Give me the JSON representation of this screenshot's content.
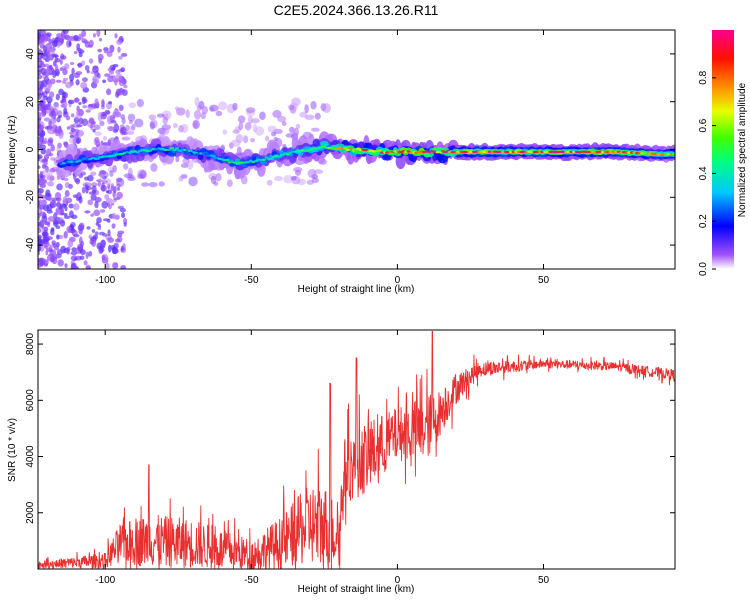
{
  "title": "C2E5.2024.366.13.26.R11",
  "chart_data": [
    {
      "type": "heatmap",
      "xlabel": "Height of straight line (km)",
      "ylabel": "Frequency (Hz)",
      "xlim": [
        -123,
        95
      ],
      "ylim": [
        -50,
        50
      ],
      "xticks": [
        -100,
        -50,
        0,
        50
      ],
      "yticks": [
        -40,
        -20,
        0,
        20,
        40
      ],
      "colorbar": {
        "label": "Normalized spectral amplitude",
        "range": [
          0,
          1
        ],
        "ticks": [
          0.0,
          0.2,
          0.4,
          0.6,
          0.8
        ],
        "colors": [
          "#ffffff",
          "#8000ff",
          "#0000ff",
          "#00ffff",
          "#00ff00",
          "#ffff00",
          "#ff8000",
          "#ff0000",
          "#ff0080"
        ]
      },
      "ridge": [
        {
          "x": -115,
          "y": -6,
          "amp": 0.3
        },
        {
          "x": -105,
          "y": -4,
          "amp": 0.35
        },
        {
          "x": -95,
          "y": -2,
          "amp": 0.4
        },
        {
          "x": -85,
          "y": 0,
          "amp": 0.4
        },
        {
          "x": -75,
          "y": 0,
          "amp": 0.4
        },
        {
          "x": -65,
          "y": -2,
          "amp": 0.35
        },
        {
          "x": -55,
          "y": -6,
          "amp": 0.45
        },
        {
          "x": -45,
          "y": -4,
          "amp": 0.45
        },
        {
          "x": -35,
          "y": -1,
          "amp": 0.5
        },
        {
          "x": -25,
          "y": 1,
          "amp": 0.55
        },
        {
          "x": -15,
          "y": 0,
          "amp": 0.75
        },
        {
          "x": -5,
          "y": -1,
          "amp": 0.8
        },
        {
          "x": 5,
          "y": -1,
          "amp": 0.85
        },
        {
          "x": 25,
          "y": -1,
          "amp": 0.9
        },
        {
          "x": 50,
          "y": -1,
          "amp": 0.9
        },
        {
          "x": 75,
          "y": -1,
          "amp": 0.9
        },
        {
          "x": 90,
          "y": -2,
          "amp": 0.7
        }
      ]
    },
    {
      "type": "line",
      "xlabel": "Height of straight line (km)",
      "ylabel": "SNR (10 * v/v)",
      "xlim": [
        -123,
        95
      ],
      "ylim": [
        0,
        8500
      ],
      "xticks": [
        -100,
        -50,
        0,
        50
      ],
      "yticks": [
        2000,
        4000,
        6000,
        8000
      ],
      "color": "#e83030",
      "envelope": [
        {
          "x": -123,
          "mean": 150,
          "amp": 150
        },
        {
          "x": -100,
          "mean": 300,
          "amp": 350
        },
        {
          "x": -95,
          "mean": 900,
          "amp": 900
        },
        {
          "x": -85,
          "mean": 1000,
          "amp": 1200
        },
        {
          "x": -70,
          "mean": 900,
          "amp": 1100
        },
        {
          "x": -60,
          "mean": 700,
          "amp": 900
        },
        {
          "x": -50,
          "mean": 500,
          "amp": 700
        },
        {
          "x": -40,
          "mean": 900,
          "amp": 1200
        },
        {
          "x": -30,
          "mean": 1600,
          "amp": 1800
        },
        {
          "x": -25,
          "mean": 1500,
          "amp": 2000
        },
        {
          "x": -20,
          "mean": 1200,
          "amp": 1200
        },
        {
          "x": -18,
          "mean": 3500,
          "amp": 1500
        },
        {
          "x": -10,
          "mean": 4000,
          "amp": 1600
        },
        {
          "x": 0,
          "mean": 4800,
          "amp": 1200
        },
        {
          "x": 10,
          "mean": 5000,
          "amp": 1500
        },
        {
          "x": 15,
          "mean": 5600,
          "amp": 1000
        },
        {
          "x": 20,
          "mean": 6400,
          "amp": 700
        },
        {
          "x": 28,
          "mean": 7100,
          "amp": 350
        },
        {
          "x": 50,
          "mean": 7300,
          "amp": 200
        },
        {
          "x": 75,
          "mean": 7200,
          "amp": 200
        },
        {
          "x": 95,
          "mean": 6900,
          "amp": 250
        }
      ],
      "peaks": [
        {
          "x": 12,
          "y": 8450
        },
        {
          "x": -23,
          "y": 6600
        },
        {
          "x": -14,
          "y": 7500
        },
        {
          "x": -85,
          "y": 3700
        }
      ]
    }
  ]
}
